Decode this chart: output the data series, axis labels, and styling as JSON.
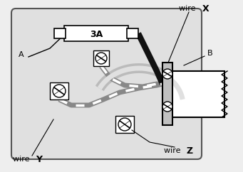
{
  "bg_color": "#eeeeee",
  "box_facecolor": "#e0e0e0",
  "box_edgecolor": "#555555",
  "label_A": "A",
  "label_B": "B",
  "fuse_label": "3A",
  "black_wire_color": "#111111",
  "grey_wire_color": "#bbbbbb",
  "white": "#ffffff",
  "label_wireX_plain": "wire ",
  "label_wireX_bold": "X",
  "label_wireY_plain": "wire ",
  "label_wireY_bold": "Y",
  "label_wireZ_plain": "wire ",
  "label_wireZ_bold": "Z"
}
